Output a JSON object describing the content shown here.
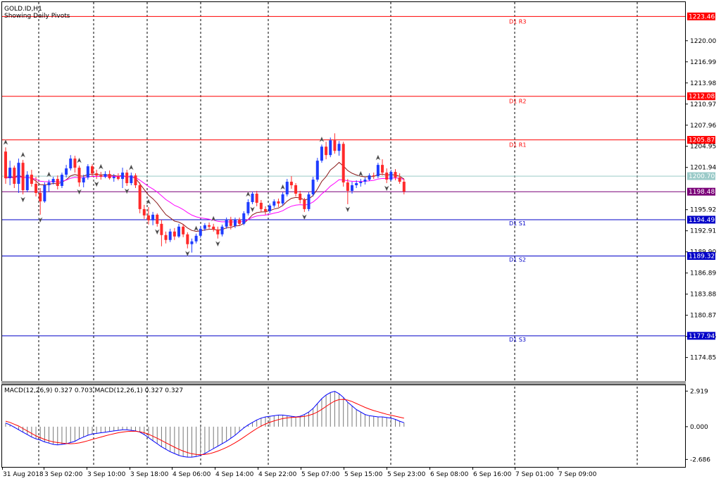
{
  "window": {
    "symbol_label": "GOLD.ID,H1",
    "overlay_label": "Showing Daily Pivots"
  },
  "colors": {
    "background": "#ffffff",
    "frame": "#000000",
    "grid": "#000000",
    "bull": "#1e3cff",
    "bear": "#ff2a2a",
    "resistance": "#ff0000",
    "support": "#0000c8",
    "pivot": "#9acac8",
    "last_price": "#7a0078",
    "ma_fast": "#8b1a1a",
    "ma_slow": "#ff00ff",
    "macd_line": "#0000ff",
    "signal_line": "#ff0000"
  },
  "chart_data": [
    {
      "type": "candlestick",
      "y_ticks": [
        "1220.00",
        "1216.99",
        "1213.98",
        "1210.97",
        "1207.96",
        "1204.95",
        "1201.94",
        "1195.92",
        "1192.91",
        "1189.90",
        "1186.89",
        "1183.88",
        "1180.87",
        "1177.86",
        "1174.85"
      ],
      "ylim": [
        1171.5,
        1225.5
      ],
      "x_labels": [
        "31 Aug 2018",
        "3 Sep 02:00",
        "3 Sep 10:00",
        "3 Sep 18:00",
        "4 Sep 06:00",
        "4 Sep 14:00",
        "4 Sep 22:00",
        "5 Sep 07:00",
        "5 Sep 15:00",
        "5 Sep 23:00",
        "6 Sep 08:00",
        "6 Sep 16:00",
        "7 Sep 01:00",
        "7 Sep 09:00"
      ],
      "levels": [
        {
          "kind": "resistance",
          "name": "D1 R3",
          "value": 1223.46,
          "price_label": "1223.46"
        },
        {
          "kind": "resistance",
          "name": "D1 R2",
          "value": 1212.08,
          "price_label": "1212.08"
        },
        {
          "kind": "resistance",
          "name": "D1 R1",
          "value": 1205.87,
          "price_label": "1205.87"
        },
        {
          "kind": "pivot",
          "name": "",
          "value": 1200.7,
          "price_label": "1200.70"
        },
        {
          "kind": "last_price",
          "name": "",
          "value": 1198.48,
          "price_label": "1198.48"
        },
        {
          "kind": "support",
          "name": "D1 S1",
          "value": 1194.49,
          "price_label": "1194.49"
        },
        {
          "kind": "support",
          "name": "D1 S2",
          "value": 1189.32,
          "price_label": "1189.32"
        },
        {
          "kind": "support",
          "name": "D1 S3",
          "value": 1177.94,
          "price_label": "1177.94"
        }
      ],
      "candles": [
        [
          1204.2,
          1204.8,
          1199.6,
          1200.4
        ],
        [
          1200.4,
          1202.9,
          1199.4,
          1201.9
        ],
        [
          1201.9,
          1202.2,
          1199.0,
          1199.6
        ],
        [
          1199.6,
          1203.2,
          1198.3,
          1202.6
        ],
        [
          1202.6,
          1203.0,
          1198.1,
          1198.7
        ],
        [
          1198.7,
          1201.4,
          1198.4,
          1200.9
        ],
        [
          1200.9,
          1201.6,
          1199.2,
          1199.6
        ],
        [
          1199.6,
          1200.6,
          1197.8,
          1198.3
        ],
        [
          1198.3,
          1199.0,
          1195.2,
          1197.1
        ],
        [
          1197.1,
          1199.8,
          1196.9,
          1199.4
        ],
        [
          1199.4,
          1200.2,
          1198.5,
          1199.8
        ],
        [
          1199.8,
          1200.6,
          1199.5,
          1200.3
        ],
        [
          1200.3,
          1200.8,
          1198.8,
          1199.3
        ],
        [
          1199.3,
          1201.2,
          1199.0,
          1200.9
        ],
        [
          1200.9,
          1202.3,
          1200.5,
          1201.8
        ],
        [
          1201.8,
          1203.7,
          1201.5,
          1203.2
        ],
        [
          1203.2,
          1203.6,
          1201.2,
          1201.9
        ],
        [
          1201.9,
          1202.2,
          1199.2,
          1199.8
        ],
        [
          1199.8,
          1200.9,
          1199.1,
          1200.5
        ],
        [
          1200.5,
          1202.4,
          1200.2,
          1202.1
        ],
        [
          1202.1,
          1202.4,
          1200.6,
          1201.1
        ],
        [
          1201.1,
          1201.6,
          1200.3,
          1200.8
        ],
        [
          1200.8,
          1201.3,
          1200.2,
          1200.6
        ],
        [
          1200.6,
          1201.4,
          1200.4,
          1201.0
        ],
        [
          1201.0,
          1201.5,
          1200.2,
          1200.4
        ],
        [
          1200.4,
          1201.0,
          1199.9,
          1200.6
        ],
        [
          1200.6,
          1201.1,
          1200.1,
          1200.3
        ],
        [
          1200.3,
          1201.9,
          1199.0,
          1201.2
        ],
        [
          1201.2,
          1201.6,
          1199.3,
          1199.7
        ],
        [
          1199.7,
          1201.2,
          1199.4,
          1200.8
        ],
        [
          1200.8,
          1201.1,
          1199.0,
          1199.4
        ],
        [
          1199.4,
          1199.8,
          1195.4,
          1196.0
        ],
        [
          1196.0,
          1196.6,
          1194.6,
          1195.1
        ],
        [
          1195.1,
          1196.3,
          1193.8,
          1194.4
        ],
        [
          1194.4,
          1195.6,
          1193.7,
          1195.2
        ],
        [
          1195.2,
          1195.4,
          1193.5,
          1193.9
        ],
        [
          1193.9,
          1194.5,
          1190.7,
          1192.3
        ],
        [
          1192.3,
          1192.8,
          1191.1,
          1191.6
        ],
        [
          1191.6,
          1193.2,
          1191.3,
          1192.8
        ],
        [
          1192.8,
          1193.3,
          1191.6,
          1192.1
        ],
        [
          1192.1,
          1193.9,
          1191.9,
          1193.5
        ],
        [
          1193.5,
          1193.8,
          1192.0,
          1192.4
        ],
        [
          1192.4,
          1192.7,
          1190.4,
          1191.0
        ],
        [
          1191.0,
          1191.8,
          1189.8,
          1191.4
        ],
        [
          1191.4,
          1192.5,
          1191.1,
          1192.2
        ],
        [
          1192.2,
          1193.6,
          1191.9,
          1193.2
        ],
        [
          1193.2,
          1194.0,
          1192.9,
          1193.7
        ],
        [
          1193.7,
          1194.1,
          1193.2,
          1193.5
        ],
        [
          1193.5,
          1193.9,
          1192.8,
          1193.1
        ],
        [
          1193.1,
          1193.5,
          1191.8,
          1192.4
        ],
        [
          1192.4,
          1193.8,
          1192.1,
          1193.5
        ],
        [
          1193.5,
          1194.8,
          1193.2,
          1194.5
        ],
        [
          1194.5,
          1194.9,
          1193.1,
          1193.6
        ],
        [
          1193.6,
          1194.8,
          1193.3,
          1194.5
        ],
        [
          1194.5,
          1194.8,
          1193.6,
          1193.9
        ],
        [
          1193.9,
          1195.7,
          1193.7,
          1195.4
        ],
        [
          1195.4,
          1197.4,
          1195.1,
          1197.0
        ],
        [
          1197.0,
          1198.5,
          1196.7,
          1198.2
        ],
        [
          1198.2,
          1198.6,
          1196.4,
          1196.9
        ],
        [
          1196.9,
          1197.3,
          1195.6,
          1196.0
        ],
        [
          1196.0,
          1196.4,
          1195.2,
          1195.7
        ],
        [
          1195.7,
          1196.8,
          1195.4,
          1196.5
        ],
        [
          1196.5,
          1197.4,
          1196.2,
          1197.1
        ],
        [
          1197.1,
          1197.5,
          1196.3,
          1196.8
        ],
        [
          1196.8,
          1198.4,
          1196.5,
          1198.1
        ],
        [
          1198.1,
          1200.3,
          1197.8,
          1199.9
        ],
        [
          1199.9,
          1200.7,
          1198.9,
          1199.4
        ],
        [
          1199.4,
          1199.7,
          1197.8,
          1198.2
        ],
        [
          1198.2,
          1198.6,
          1196.8,
          1197.3
        ],
        [
          1197.3,
          1197.6,
          1195.6,
          1196.0
        ],
        [
          1196.0,
          1198.4,
          1195.7,
          1198.1
        ],
        [
          1198.1,
          1200.6,
          1197.8,
          1200.2
        ],
        [
          1200.2,
          1203.3,
          1199.9,
          1202.9
        ],
        [
          1202.9,
          1205.2,
          1202.6,
          1204.9
        ],
        [
          1204.9,
          1205.6,
          1203.1,
          1203.7
        ],
        [
          1203.7,
          1206.2,
          1203.4,
          1205.8
        ],
        [
          1205.8,
          1206.8,
          1203.9,
          1204.3
        ],
        [
          1204.3,
          1205.7,
          1203.6,
          1205.3
        ],
        [
          1205.3,
          1205.6,
          1199.2,
          1199.8
        ],
        [
          1199.8,
          1200.3,
          1196.7,
          1198.6
        ],
        [
          1198.6,
          1199.9,
          1198.2,
          1199.4
        ],
        [
          1199.4,
          1200.1,
          1199.0,
          1199.7
        ],
        [
          1199.7,
          1200.3,
          1199.2,
          1199.9
        ],
        [
          1199.9,
          1200.5,
          1199.5,
          1200.2
        ],
        [
          1200.2,
          1201.1,
          1200.0,
          1200.8
        ],
        [
          1200.8,
          1201.2,
          1200.3,
          1200.7
        ],
        [
          1200.7,
          1202.6,
          1200.4,
          1202.3
        ],
        [
          1202.3,
          1203.1,
          1200.8,
          1201.2
        ],
        [
          1201.2,
          1201.8,
          1199.7,
          1200.2
        ],
        [
          1200.2,
          1201.6,
          1200.0,
          1201.3
        ],
        [
          1201.3,
          1201.7,
          1200.1,
          1200.5
        ],
        [
          1200.5,
          1201.1,
          1199.6,
          1199.9
        ],
        [
          1199.9,
          1200.3,
          1198.1,
          1198.5
        ]
      ],
      "fractals": [
        {
          "i": 0,
          "dir": "up"
        },
        {
          "i": 4,
          "dir": "up"
        },
        {
          "i": 4,
          "dir": "down"
        },
        {
          "i": 10,
          "dir": "up"
        },
        {
          "i": 8,
          "dir": "down"
        },
        {
          "i": 17,
          "dir": "up"
        },
        {
          "i": 17,
          "dir": "down"
        },
        {
          "i": 22,
          "dir": "up"
        },
        {
          "i": 21,
          "dir": "down"
        },
        {
          "i": 29,
          "dir": "up"
        },
        {
          "i": 28,
          "dir": "down"
        },
        {
          "i": 33,
          "dir": "up"
        },
        {
          "i": 35,
          "dir": "down"
        },
        {
          "i": 44,
          "dir": "up"
        },
        {
          "i": 42,
          "dir": "down"
        },
        {
          "i": 48,
          "dir": "up"
        },
        {
          "i": 49,
          "dir": "down"
        },
        {
          "i": 56,
          "dir": "up"
        },
        {
          "i": 57,
          "dir": "down"
        },
        {
          "i": 64,
          "dir": "up"
        },
        {
          "i": 69,
          "dir": "down"
        },
        {
          "i": 73,
          "dir": "up"
        },
        {
          "i": 79,
          "dir": "down"
        },
        {
          "i": 82,
          "dir": "up"
        },
        {
          "i": 86,
          "dir": "up"
        },
        {
          "i": 88,
          "dir": "down"
        }
      ]
    },
    {
      "type": "bar",
      "label": "MACD(12,26,9) 0.327 0.703 MACD(12,26,1) 0.327 0.327",
      "y_ticks": [
        "2.919",
        "0.000",
        "-2.686"
      ],
      "ylim": [
        -3.3,
        3.4
      ],
      "series": [
        {
          "name": "",
          "kind": "histogram",
          "values": [
            0.3,
            0.15,
            -0.05,
            -0.25,
            -0.45,
            -0.65,
            -0.85,
            -1.0,
            -1.1,
            -1.25,
            -1.35,
            -1.45,
            -1.5,
            -1.45,
            -1.4,
            -1.3,
            -1.2,
            -1.0,
            -0.85,
            -0.7,
            -0.6,
            -0.55,
            -0.5,
            -0.45,
            -0.4,
            -0.35,
            -0.3,
            -0.25,
            -0.25,
            -0.3,
            -0.35,
            -0.45,
            -0.65,
            -0.9,
            -1.15,
            -1.4,
            -1.65,
            -1.85,
            -2.05,
            -2.2,
            -2.35,
            -2.45,
            -2.5,
            -2.5,
            -2.45,
            -2.35,
            -2.2,
            -2.0,
            -1.8,
            -1.6,
            -1.4,
            -1.2,
            -0.95,
            -0.7,
            -0.4,
            -0.1,
            0.15,
            0.35,
            0.55,
            0.7,
            0.8,
            0.85,
            0.9,
            0.95,
            0.95,
            0.9,
            0.85,
            0.8,
            0.85,
            1.0,
            1.2,
            1.5,
            1.9,
            2.3,
            2.6,
            2.8,
            2.9,
            2.7,
            2.4,
            2.0,
            1.7,
            1.4,
            1.2,
            1.0,
            0.9,
            0.85,
            0.8,
            0.8,
            0.75,
            0.7,
            0.6,
            0.45,
            0.33
          ]
        },
        {
          "name": "",
          "kind": "line",
          "values": [
            0.45,
            0.35,
            0.2,
            0.05,
            -0.15,
            -0.35,
            -0.55,
            -0.75,
            -0.9,
            -1.05,
            -1.15,
            -1.25,
            -1.3,
            -1.35,
            -1.38,
            -1.4,
            -1.38,
            -1.33,
            -1.25,
            -1.15,
            -1.05,
            -0.95,
            -0.85,
            -0.75,
            -0.66,
            -0.58,
            -0.5,
            -0.44,
            -0.4,
            -0.38,
            -0.38,
            -0.42,
            -0.5,
            -0.62,
            -0.78,
            -0.95,
            -1.13,
            -1.32,
            -1.5,
            -1.68,
            -1.85,
            -2.0,
            -2.12,
            -2.22,
            -2.28,
            -2.3,
            -2.28,
            -2.22,
            -2.12,
            -2.0,
            -1.86,
            -1.7,
            -1.52,
            -1.32,
            -1.1,
            -0.86,
            -0.62,
            -0.38,
            -0.15,
            0.05,
            0.22,
            0.36,
            0.48,
            0.58,
            0.66,
            0.72,
            0.76,
            0.78,
            0.8,
            0.84,
            0.92,
            1.04,
            1.2,
            1.42,
            1.66,
            1.9,
            2.1,
            2.22,
            2.24,
            2.18,
            2.06,
            1.9,
            1.74,
            1.58,
            1.44,
            1.32,
            1.22,
            1.12,
            1.02,
            0.94,
            0.86,
            0.78,
            0.7
          ]
        }
      ]
    }
  ]
}
